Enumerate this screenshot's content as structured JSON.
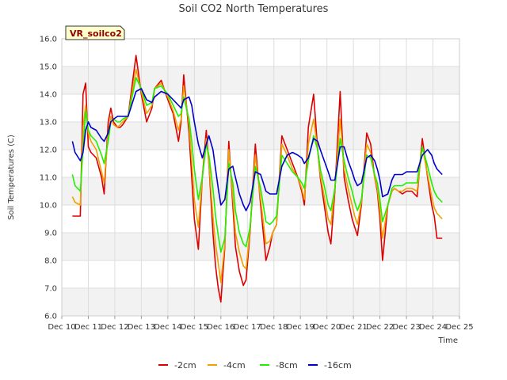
{
  "chart_data": {
    "type": "line",
    "title": "Soil CO2 North Temperatures",
    "xlabel": "Time",
    "ylabel": "Soil Temperatures (C)",
    "badge": "VR_soilco2",
    "ylim": [
      6.0,
      16.0
    ],
    "y_ticks": [
      "6.0",
      "7.0",
      "8.0",
      "9.0",
      "10.0",
      "11.0",
      "12.0",
      "13.0",
      "14.0",
      "15.0",
      "16.0"
    ],
    "xlim": [
      10,
      25
    ],
    "x_ticks": [
      "Dec 10",
      "Dec 11",
      "Dec 12",
      "Dec 13",
      "Dec 14",
      "Dec 15",
      "Dec 16",
      "Dec 17",
      "Dec 18",
      "Dec 19",
      "Dec 20",
      "Dec 21",
      "Dec 22",
      "Dec 23",
      "Dec 24",
      "Dec 25"
    ],
    "grid": true,
    "legend_position": "bottom",
    "series": [
      {
        "name": "-2cm",
        "color": "#dd0000",
        "x": [
          10.4,
          10.5,
          10.7,
          10.8,
          10.9,
          11.0,
          11.1,
          11.3,
          11.5,
          11.6,
          11.75,
          11.85,
          11.95,
          12.1,
          12.2,
          12.3,
          12.5,
          12.8,
          13.0,
          13.2,
          13.4,
          13.5,
          13.75,
          14.0,
          14.2,
          14.4,
          14.5,
          14.6,
          14.8,
          14.9,
          15.0,
          15.15,
          15.3,
          15.45,
          15.55,
          15.7,
          15.8,
          15.9,
          16.0,
          16.15,
          16.3,
          16.45,
          16.55,
          16.7,
          16.85,
          16.95,
          17.1,
          17.3,
          17.5,
          17.7,
          17.85,
          17.95,
          18.1,
          18.3,
          18.5,
          18.7,
          18.9,
          19.05,
          19.15,
          19.3,
          19.5,
          19.65,
          19.75,
          19.9,
          20.05,
          20.15,
          20.3,
          20.5,
          20.65,
          20.8,
          20.95,
          21.05,
          21.15,
          21.3,
          21.5,
          21.65,
          21.8,
          21.9,
          22.0,
          22.1,
          22.3,
          22.45,
          22.55,
          22.7,
          22.85,
          23.0,
          23.2,
          23.4,
          23.6,
          23.8,
          23.95,
          24.05,
          24.15,
          24.25,
          24.35
        ],
        "values": [
          9.6,
          9.6,
          9.6,
          14.0,
          14.4,
          12.1,
          11.9,
          11.7,
          11.0,
          10.4,
          13.0,
          13.5,
          13.0,
          12.8,
          12.8,
          12.9,
          13.2,
          15.4,
          14.0,
          13.0,
          13.5,
          14.2,
          14.5,
          13.8,
          13.3,
          12.3,
          13.0,
          14.7,
          12.6,
          11.0,
          9.5,
          8.4,
          11.0,
          12.7,
          11.5,
          9.0,
          7.8,
          7.0,
          6.5,
          8.5,
          12.3,
          10.0,
          8.5,
          7.6,
          7.1,
          7.3,
          9.0,
          12.2,
          10.0,
          8.0,
          8.5,
          9.0,
          9.3,
          12.5,
          12.0,
          11.5,
          11.0,
          10.5,
          10.0,
          12.8,
          14.0,
          12.0,
          11.0,
          10.0,
          9.0,
          8.6,
          10.5,
          14.1,
          11.0,
          10.2,
          9.5,
          9.2,
          8.9,
          10.0,
          12.6,
          12.2,
          11.0,
          10.5,
          9.5,
          8.0,
          10.0,
          10.5,
          10.6,
          10.5,
          10.4,
          10.5,
          10.5,
          10.3,
          12.4,
          11.0,
          10.0,
          9.6,
          8.8,
          8.8,
          8.8
        ]
      },
      {
        "name": "-4cm",
        "color": "#f0a000",
        "x": [
          10.4,
          10.5,
          10.7,
          10.8,
          10.9,
          11.0,
          11.1,
          11.3,
          11.5,
          11.6,
          11.75,
          11.85,
          11.95,
          12.1,
          12.2,
          12.3,
          12.5,
          12.8,
          13.0,
          13.2,
          13.4,
          13.5,
          13.75,
          14.0,
          14.2,
          14.4,
          14.5,
          14.6,
          14.8,
          14.9,
          15.0,
          15.15,
          15.3,
          15.45,
          15.55,
          15.7,
          15.8,
          15.9,
          16.0,
          16.15,
          16.3,
          16.45,
          16.55,
          16.7,
          16.85,
          16.95,
          17.1,
          17.3,
          17.5,
          17.7,
          17.85,
          17.95,
          18.1,
          18.3,
          18.5,
          18.7,
          18.9,
          19.05,
          19.15,
          19.3,
          19.5,
          19.65,
          19.75,
          19.9,
          20.05,
          20.15,
          20.3,
          20.5,
          20.65,
          20.8,
          20.95,
          21.05,
          21.15,
          21.3,
          21.5,
          21.65,
          21.8,
          21.9,
          22.0,
          22.1,
          22.3,
          22.45,
          22.55,
          22.7,
          22.85,
          23.0,
          23.2,
          23.4,
          23.6,
          23.8,
          23.95,
          24.05,
          24.15,
          24.25,
          24.35
        ],
        "values": [
          10.3,
          10.1,
          10.0,
          12.8,
          13.6,
          12.6,
          12.3,
          12.0,
          11.2,
          10.8,
          12.6,
          13.2,
          12.9,
          12.8,
          12.9,
          13.0,
          13.2,
          14.9,
          14.1,
          13.3,
          13.6,
          14.2,
          14.4,
          13.9,
          13.4,
          12.7,
          13.1,
          14.3,
          12.9,
          11.6,
          10.2,
          9.2,
          11.0,
          12.4,
          11.5,
          9.6,
          8.6,
          7.9,
          7.2,
          8.6,
          12.0,
          10.3,
          9.0,
          8.3,
          7.8,
          7.7,
          9.1,
          11.8,
          10.2,
          8.6,
          8.7,
          9.0,
          9.3,
          12.2,
          11.8,
          11.3,
          11.0,
          10.6,
          10.2,
          12.2,
          13.1,
          12.0,
          11.1,
          10.3,
          9.5,
          9.3,
          10.6,
          13.1,
          11.3,
          10.6,
          10.0,
          9.6,
          9.3,
          10.1,
          12.2,
          11.9,
          11.0,
          10.6,
          9.8,
          8.8,
          10.0,
          10.5,
          10.6,
          10.5,
          10.5,
          10.6,
          10.6,
          10.5,
          12.1,
          11.1,
          10.3,
          9.9,
          9.7,
          9.6,
          9.5
        ]
      },
      {
        "name": "-8cm",
        "color": "#22ee00",
        "x": [
          10.4,
          10.5,
          10.7,
          10.8,
          10.9,
          11.0,
          11.1,
          11.3,
          11.5,
          11.6,
          11.75,
          11.85,
          11.95,
          12.1,
          12.2,
          12.3,
          12.5,
          12.8,
          13.0,
          13.2,
          13.4,
          13.5,
          13.75,
          14.0,
          14.2,
          14.4,
          14.5,
          14.6,
          14.8,
          14.9,
          15.0,
          15.15,
          15.3,
          15.45,
          15.55,
          15.7,
          15.8,
          15.9,
          16.0,
          16.15,
          16.3,
          16.45,
          16.55,
          16.7,
          16.85,
          16.95,
          17.1,
          17.3,
          17.5,
          17.7,
          17.85,
          17.95,
          18.1,
          18.3,
          18.5,
          18.7,
          18.9,
          19.05,
          19.15,
          19.3,
          19.5,
          19.65,
          19.75,
          19.9,
          20.05,
          20.15,
          20.3,
          20.5,
          20.65,
          20.8,
          20.95,
          21.05,
          21.15,
          21.3,
          21.5,
          21.65,
          21.8,
          21.9,
          22.0,
          22.1,
          22.3,
          22.45,
          22.55,
          22.7,
          22.85,
          23.0,
          23.2,
          23.4,
          23.6,
          23.8,
          23.95,
          24.05,
          24.15,
          24.25,
          24.35
        ],
        "values": [
          11.1,
          10.7,
          10.5,
          12.0,
          13.4,
          12.7,
          12.5,
          12.3,
          11.8,
          11.5,
          12.3,
          13.0,
          13.1,
          13.0,
          13.0,
          13.1,
          13.2,
          14.6,
          14.2,
          13.6,
          13.7,
          14.2,
          14.3,
          14.0,
          13.6,
          13.2,
          13.3,
          13.9,
          13.1,
          12.3,
          11.3,
          10.2,
          11.0,
          12.2,
          11.8,
          10.6,
          9.6,
          8.9,
          8.3,
          8.8,
          11.5,
          10.8,
          9.8,
          9.0,
          8.6,
          8.5,
          9.2,
          11.4,
          10.6,
          9.4,
          9.3,
          9.4,
          9.6,
          11.8,
          11.5,
          11.2,
          11.0,
          10.8,
          10.6,
          11.6,
          12.5,
          12.0,
          11.3,
          10.7,
          10.0,
          9.8,
          10.6,
          12.4,
          11.6,
          11.0,
          10.5,
          10.1,
          9.8,
          10.2,
          11.8,
          11.7,
          11.1,
          10.8,
          10.2,
          9.4,
          10.0,
          10.6,
          10.7,
          10.7,
          10.7,
          10.8,
          10.8,
          10.8,
          12.1,
          11.4,
          10.8,
          10.5,
          10.3,
          10.2,
          10.1
        ]
      },
      {
        "name": "-16cm",
        "color": "#0000cc",
        "x": [
          10.4,
          10.5,
          10.7,
          10.8,
          10.9,
          11.0,
          11.1,
          11.3,
          11.5,
          11.6,
          11.75,
          11.85,
          11.95,
          12.1,
          12.2,
          12.3,
          12.5,
          12.8,
          13.0,
          13.2,
          13.4,
          13.5,
          13.75,
          14.0,
          14.2,
          14.4,
          14.5,
          14.6,
          14.8,
          14.9,
          15.0,
          15.15,
          15.3,
          15.45,
          15.55,
          15.7,
          15.8,
          15.9,
          16.0,
          16.15,
          16.3,
          16.45,
          16.55,
          16.7,
          16.85,
          16.95,
          17.1,
          17.3,
          17.5,
          17.7,
          17.85,
          17.95,
          18.1,
          18.3,
          18.5,
          18.7,
          18.9,
          19.05,
          19.15,
          19.3,
          19.5,
          19.65,
          19.75,
          19.9,
          20.05,
          20.15,
          20.3,
          20.5,
          20.65,
          20.8,
          20.95,
          21.05,
          21.15,
          21.3,
          21.5,
          21.65,
          21.8,
          21.9,
          22.0,
          22.1,
          22.3,
          22.45,
          22.55,
          22.7,
          22.85,
          23.0,
          23.2,
          23.4,
          23.6,
          23.8,
          23.95,
          24.05,
          24.15,
          24.25,
          24.35
        ],
        "values": [
          12.3,
          11.9,
          11.6,
          11.9,
          12.7,
          13.0,
          12.8,
          12.7,
          12.4,
          12.3,
          12.6,
          13.0,
          13.1,
          13.2,
          13.2,
          13.2,
          13.2,
          14.1,
          14.2,
          13.8,
          13.7,
          13.9,
          14.1,
          14.0,
          13.8,
          13.6,
          13.5,
          13.8,
          13.9,
          13.6,
          13.0,
          12.2,
          11.7,
          12.2,
          12.5,
          12.0,
          11.3,
          10.6,
          10.0,
          10.2,
          11.3,
          11.4,
          11.0,
          10.4,
          10.0,
          9.8,
          10.1,
          11.2,
          11.1,
          10.5,
          10.4,
          10.4,
          10.4,
          11.4,
          11.8,
          11.9,
          11.8,
          11.7,
          11.5,
          11.7,
          12.4,
          12.3,
          12.0,
          11.6,
          11.2,
          10.9,
          10.9,
          12.1,
          12.1,
          11.6,
          11.2,
          10.9,
          10.7,
          10.8,
          11.7,
          11.8,
          11.6,
          11.3,
          10.9,
          10.3,
          10.4,
          10.9,
          11.1,
          11.1,
          11.1,
          11.2,
          11.2,
          11.2,
          11.8,
          12.0,
          11.8,
          11.5,
          11.3,
          11.2,
          11.1
        ]
      }
    ]
  }
}
